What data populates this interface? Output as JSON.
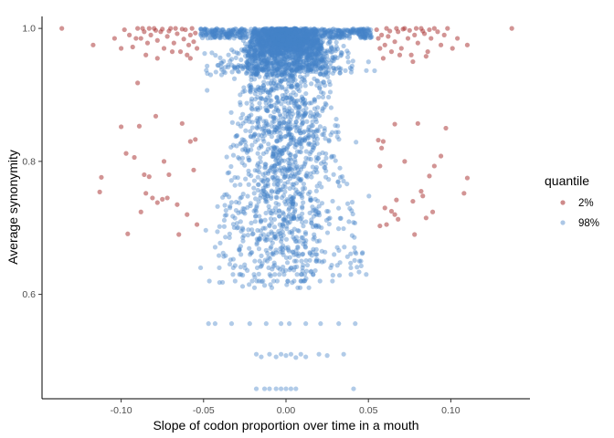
{
  "chart_data": {
    "type": "scatter",
    "xlabel": "Slope of codon proportion over time in a mouth",
    "ylabel": "Average synonymity",
    "xlim": [
      -0.148,
      0.148
    ],
    "ylim": [
      0.443,
      1.018
    ],
    "x_ticks": [
      -0.1,
      -0.05,
      0.0,
      0.05,
      0.1
    ],
    "x_tick_labels": [
      "-0.10",
      "-0.05",
      "0.00",
      "0.05",
      "0.10"
    ],
    "y_ticks": [
      0.6,
      0.8,
      1.0
    ],
    "y_tick_labels": [
      "0.6",
      "0.8",
      "1.0"
    ],
    "grid": false,
    "legend": {
      "title": "quantile",
      "placement": "right",
      "entries": [
        {
          "label": "2%",
          "color": "#a52a2a"
        },
        {
          "label": "98%",
          "color": "#4682c8"
        }
      ]
    },
    "series": [
      {
        "name": "2%",
        "color": "#a52a2a",
        "points": [
          [
            -0.136,
            1.0
          ],
          [
            -0.117,
            0.975
          ],
          [
            -0.104,
            0.985
          ],
          [
            -0.098,
            0.998
          ],
          [
            -0.095,
            0.99
          ],
          [
            -0.093,
            0.972
          ],
          [
            -0.09,
            1.0
          ],
          [
            -0.088,
            0.985
          ],
          [
            -0.086,
            0.995
          ],
          [
            -0.084,
            0.978
          ],
          [
            -0.082,
            0.99
          ],
          [
            -0.08,
            1.0
          ],
          [
            -0.078,
            0.982
          ],
          [
            -0.076,
            0.995
          ],
          [
            -0.074,
            0.97
          ],
          [
            -0.072,
            0.988
          ],
          [
            -0.07,
            1.0
          ],
          [
            -0.068,
            0.978
          ],
          [
            -0.066,
            0.992
          ],
          [
            -0.064,
            0.965
          ],
          [
            -0.062,
            0.984
          ],
          [
            -0.061,
            0.998
          ],
          [
            -0.06,
            0.96
          ],
          [
            -0.059,
            0.975
          ],
          [
            -0.058,
            0.99
          ],
          [
            -0.057,
            1.0
          ],
          [
            -0.056,
            0.98
          ],
          [
            -0.055,
            0.993
          ],
          [
            -0.054,
            0.97
          ],
          [
            -0.087,
            1.0
          ],
          [
            -0.083,
            1.0
          ],
          [
            -0.079,
            0.997
          ],
          [
            -0.075,
            0.999
          ],
          [
            -0.071,
            0.996
          ],
          [
            -0.067,
            1.0
          ],
          [
            -0.063,
            0.999
          ],
          [
            -0.1,
            0.97
          ],
          [
            -0.085,
            0.96
          ],
          [
            -0.078,
            0.955
          ],
          [
            -0.091,
            0.985
          ],
          [
            -0.069,
            0.965
          ],
          [
            -0.058,
            0.955
          ],
          [
            -0.112,
            0.776
          ],
          [
            -0.113,
            0.754
          ],
          [
            -0.1,
            0.852
          ],
          [
            -0.097,
            0.812
          ],
          [
            -0.096,
            0.691
          ],
          [
            -0.092,
            0.806
          ],
          [
            -0.09,
            0.918
          ],
          [
            -0.089,
            0.853
          ],
          [
            -0.088,
            0.724
          ],
          [
            -0.086,
            0.78
          ],
          [
            -0.085,
            0.752
          ],
          [
            -0.083,
            0.777
          ],
          [
            -0.081,
            0.745
          ],
          [
            -0.079,
            0.868
          ],
          [
            -0.078,
            0.738
          ],
          [
            -0.075,
            0.743
          ],
          [
            -0.074,
            0.8
          ],
          [
            -0.071,
            0.78
          ],
          [
            -0.066,
            0.735
          ],
          [
            -0.063,
            0.857
          ],
          [
            -0.06,
            0.72
          ],
          [
            -0.058,
            0.83
          ],
          [
            -0.056,
            0.787
          ],
          [
            -0.055,
            0.833
          ],
          [
            -0.054,
            0.705
          ],
          [
            -0.065,
            0.69
          ],
          [
            -0.072,
            0.745
          ],
          [
            0.137,
            1.0
          ],
          [
            0.11,
            0.975
          ],
          [
            0.104,
            0.985
          ],
          [
            0.098,
            1.0
          ],
          [
            0.096,
            0.99
          ],
          [
            0.094,
            0.975
          ],
          [
            0.092,
            0.995
          ],
          [
            0.09,
            1.0
          ],
          [
            0.088,
            0.985
          ],
          [
            0.086,
            0.965
          ],
          [
            0.084,
            0.992
          ],
          [
            0.082,
            1.0
          ],
          [
            0.08,
            0.978
          ],
          [
            0.078,
            0.99
          ],
          [
            0.076,
            0.96
          ],
          [
            0.074,
            0.985
          ],
          [
            0.072,
            1.0
          ],
          [
            0.07,
            0.97
          ],
          [
            0.068,
            0.995
          ],
          [
            0.066,
            0.98
          ],
          [
            0.064,
            0.965
          ],
          [
            0.062,
            0.988
          ],
          [
            0.061,
            1.0
          ],
          [
            0.06,
            0.975
          ],
          [
            0.059,
            0.955
          ],
          [
            0.058,
            0.99
          ],
          [
            0.057,
            0.97
          ],
          [
            0.056,
            0.985
          ],
          [
            0.055,
            0.998
          ],
          [
            0.087,
            0.998
          ],
          [
            0.083,
            0.996
          ],
          [
            0.079,
            1.0
          ],
          [
            0.075,
            0.997
          ],
          [
            0.071,
            0.999
          ],
          [
            0.067,
            1.0
          ],
          [
            0.063,
            0.996
          ],
          [
            0.101,
            0.97
          ],
          [
            0.085,
            0.958
          ],
          [
            0.077,
            0.95
          ],
          [
            0.069,
            0.96
          ],
          [
            0.11,
            0.775
          ],
          [
            0.108,
            0.752
          ],
          [
            0.097,
            0.85
          ],
          [
            0.094,
            0.808
          ],
          [
            0.09,
            0.793
          ],
          [
            0.089,
            0.724
          ],
          [
            0.087,
            0.778
          ],
          [
            0.085,
            0.715
          ],
          [
            0.083,
            0.748
          ],
          [
            0.082,
            0.755
          ],
          [
            0.08,
            0.857
          ],
          [
            0.078,
            0.69
          ],
          [
            0.077,
            0.74
          ],
          [
            0.072,
            0.8
          ],
          [
            0.067,
            0.742
          ],
          [
            0.066,
            0.72
          ],
          [
            0.066,
            0.856
          ],
          [
            0.064,
            0.725
          ],
          [
            0.061,
            0.705
          ],
          [
            0.06,
            0.73
          ],
          [
            0.059,
            0.83
          ],
          [
            0.057,
            0.793
          ],
          [
            0.056,
            0.832
          ],
          [
            0.058,
            0.82
          ],
          [
            0.057,
            0.703
          ],
          [
            0.068,
            0.713
          ]
        ]
      },
      {
        "name": "98%",
        "color": "#4682c8",
        "points": [
          [
            -0.047,
            0.556
          ],
          [
            -0.043,
            0.556
          ],
          [
            -0.033,
            0.556
          ],
          [
            -0.022,
            0.556
          ],
          [
            -0.012,
            0.556
          ],
          [
            -0.003,
            0.556
          ],
          [
            0.002,
            0.556
          ],
          [
            0.012,
            0.556
          ],
          [
            0.021,
            0.556
          ],
          [
            0.032,
            0.556
          ],
          [
            0.042,
            0.556
          ],
          [
            -0.018,
            0.51
          ],
          [
            -0.015,
            0.506
          ],
          [
            -0.01,
            0.51
          ],
          [
            -0.006,
            0.506
          ],
          [
            -0.003,
            0.51
          ],
          [
            0.0,
            0.508
          ],
          [
            0.003,
            0.51
          ],
          [
            0.006,
            0.505
          ],
          [
            0.009,
            0.51
          ],
          [
            0.012,
            0.506
          ],
          [
            0.02,
            0.51
          ],
          [
            0.025,
            0.508
          ],
          [
            0.035,
            0.51
          ],
          [
            -0.018,
            0.458
          ],
          [
            -0.013,
            0.458
          ],
          [
            -0.01,
            0.458
          ],
          [
            -0.006,
            0.458
          ],
          [
            -0.003,
            0.458
          ],
          [
            0.0,
            0.458
          ],
          [
            0.003,
            0.458
          ],
          [
            0.006,
            0.458
          ],
          [
            0.041,
            0.458
          ]
        ],
        "generated_cloud": {
          "count": 3600,
          "x_center": 0.0,
          "seed": 7
        }
      }
    ]
  }
}
